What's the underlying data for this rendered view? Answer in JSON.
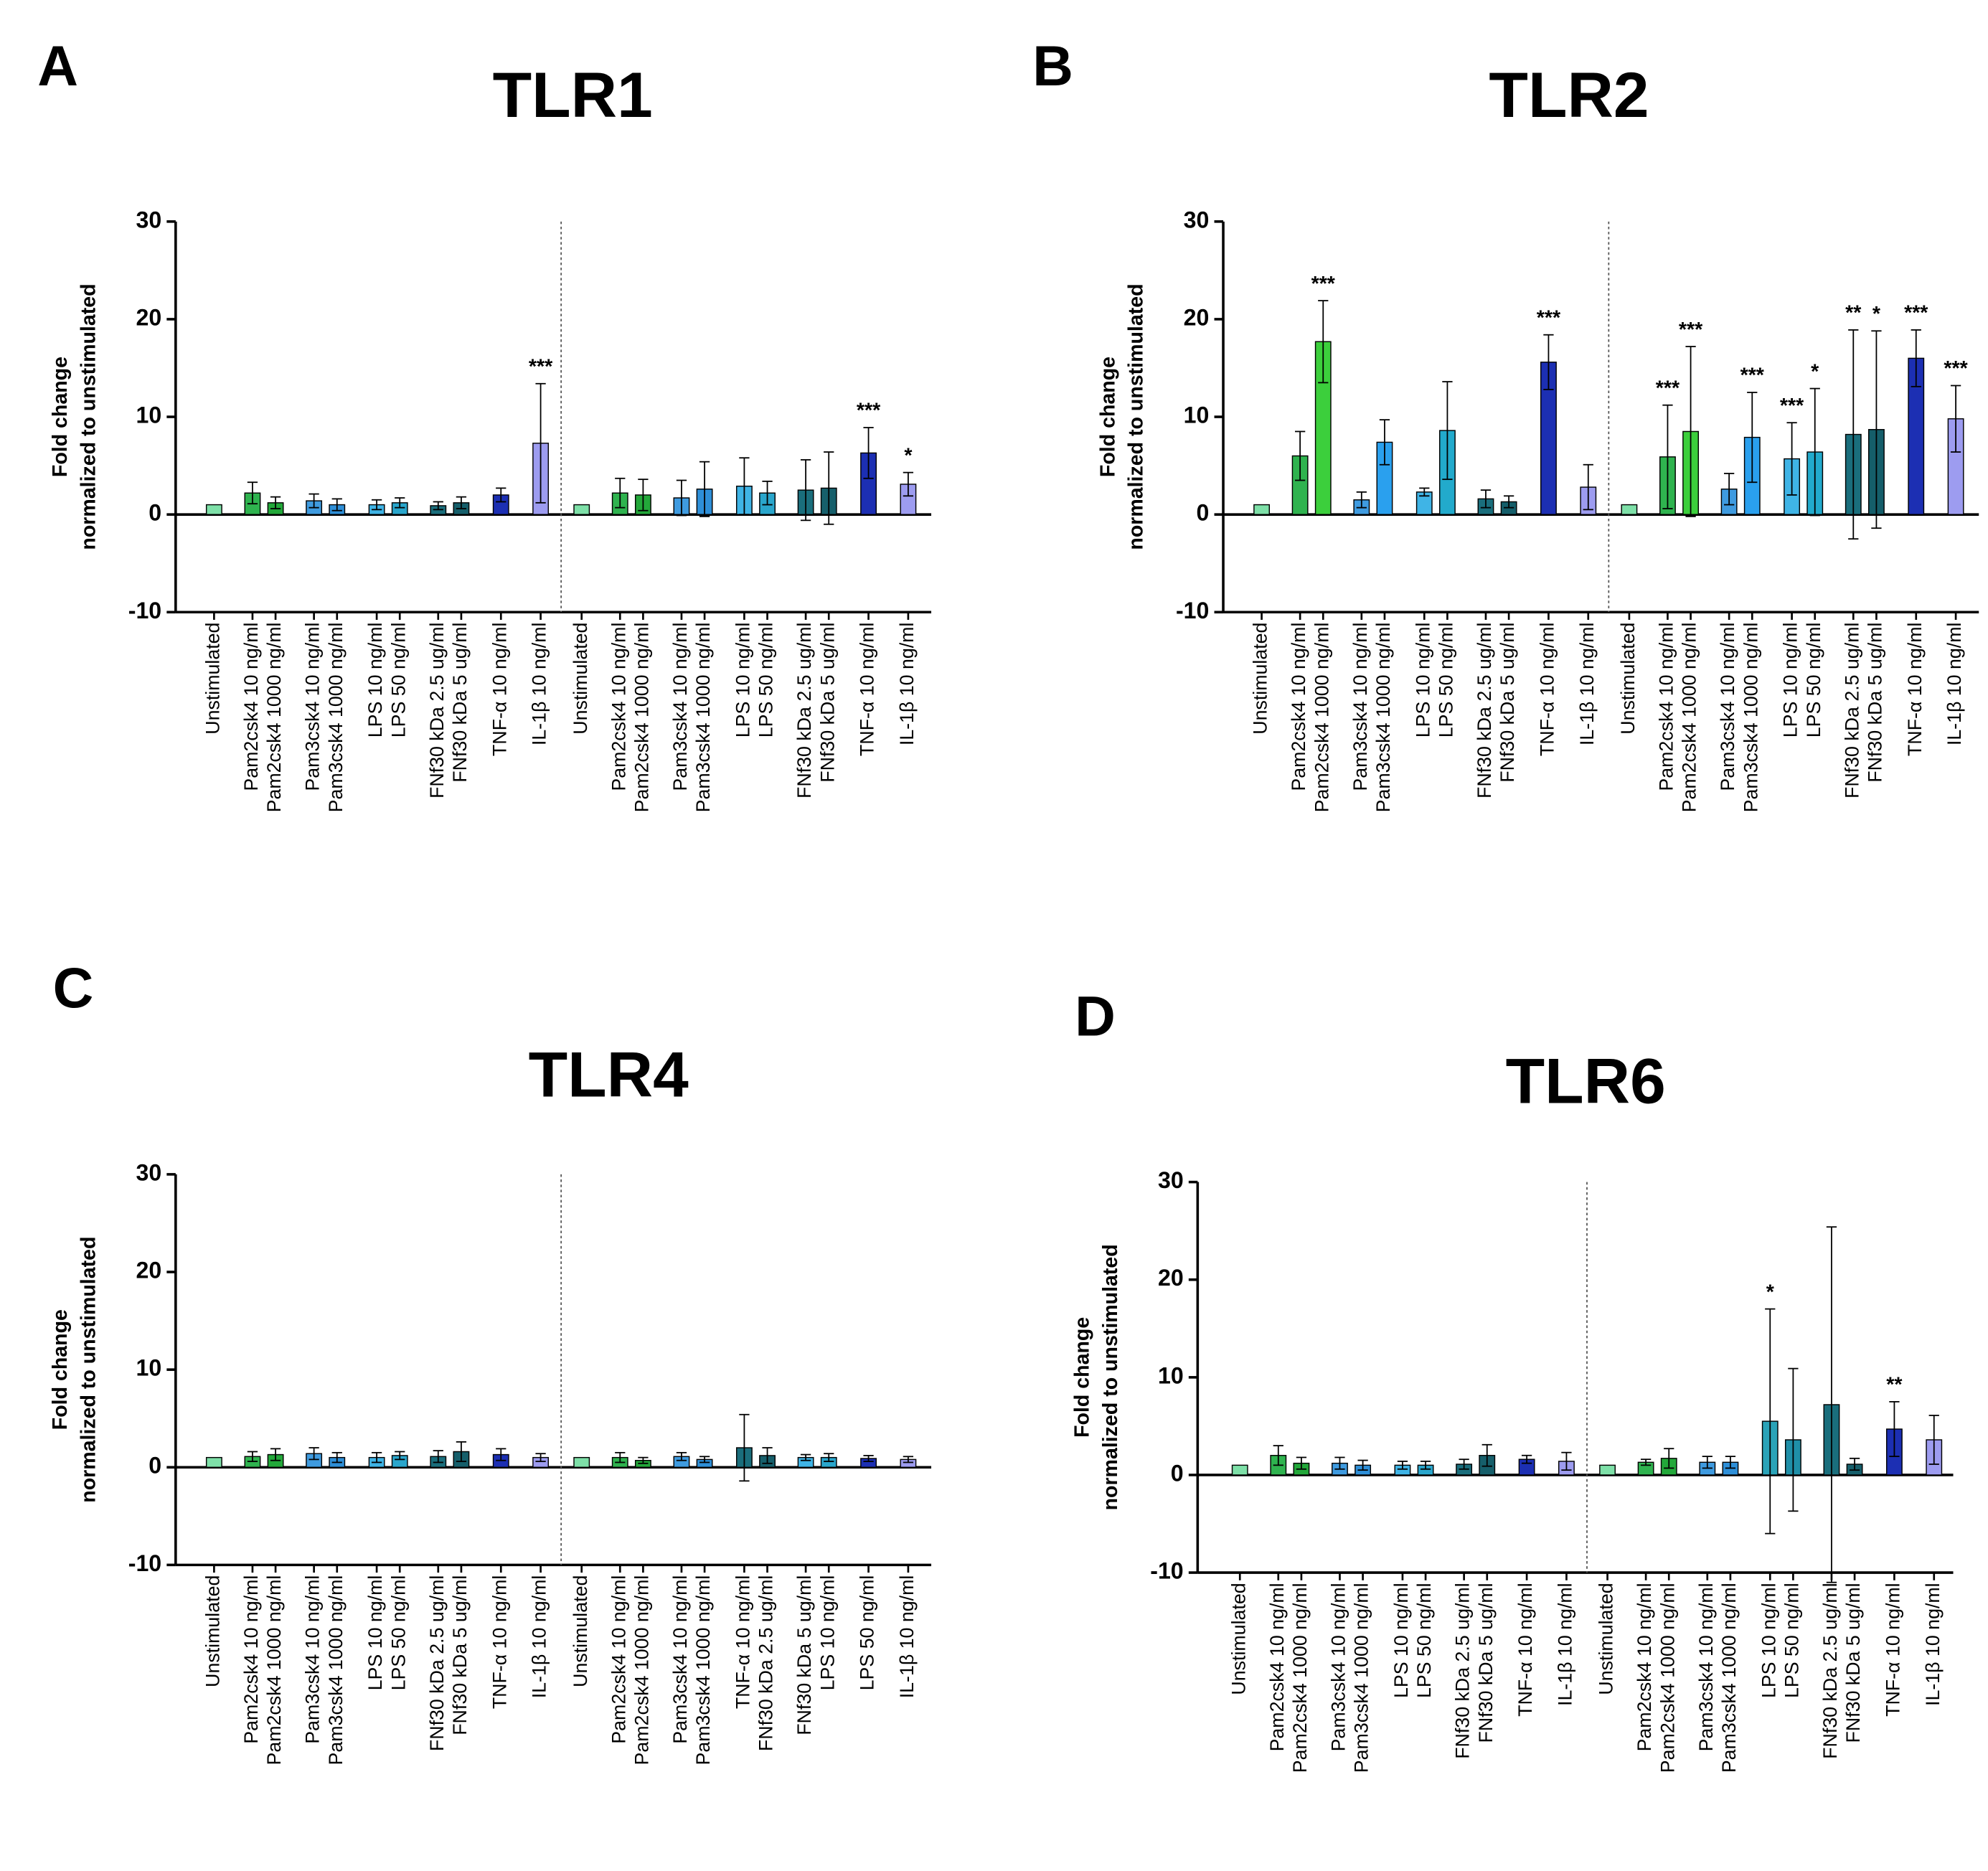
{
  "chart_data": [
    {
      "type": "bar",
      "panel": "A",
      "title": "TLR1",
      "ylabel": [
        "Fold change",
        "normalized to unstimulated"
      ],
      "categories": [
        "Unstimulated",
        "Pam2csk4 10 ng/ml",
        "Pam2csk4 1000 ng/ml",
        "Pam3csk4 10 ng/ml",
        "Pam3csk4 1000 ng/ml",
        "LPS 10 ng/ml",
        "LPS 50 ng/ml",
        "FNf30 kDa 2.5 ug/ml",
        "FNf30 kDa 5 ug/ml",
        "TNF-α 10 ng/ml",
        "IL-1β 10 ng/ml",
        "Unstimulated",
        "Pam2csk4 10 ng/ml",
        "Pam2csk4 1000 ng/ml",
        "Pam3csk4 10 ng/ml",
        "Pam3csk4 1000 ng/ml",
        "LPS 10 ng/ml",
        "LPS 50 ng/ml",
        "FNf30 kDa 2.5 ug/ml",
        "FNf30 kDa 5 ug/ml",
        "TNF-α 10 ng/ml",
        "IL-1β 10 ng/ml"
      ],
      "values": [
        1,
        2.2,
        1.2,
        1.4,
        1.0,
        1.0,
        1.2,
        0.9,
        1.2,
        2.0,
        7.3,
        1,
        2.2,
        2.0,
        1.7,
        2.6,
        2.9,
        2.2,
        2.5,
        2.7,
        6.3,
        3.1
      ],
      "errors": [
        0,
        1.1,
        0.6,
        0.7,
        0.6,
        0.5,
        0.5,
        0.4,
        0.6,
        0.7,
        6.1,
        0,
        1.5,
        1.6,
        1.8,
        2.8,
        2.9,
        1.2,
        3.1,
        3.7,
        2.6,
        1.2
      ],
      "colors": [
        "#7ee0a8",
        "#2fb34f",
        "#23a83a",
        "#3f9be0",
        "#2e8fd8",
        "#3fb4e6",
        "#2aa6cc",
        "#1a6e7c",
        "#165f6b",
        "#1c2fb3",
        "#9d9cf0",
        "#7ee0a8",
        "#2fb34f",
        "#23a83a",
        "#3f9be0",
        "#2e8fd8",
        "#3fb4e6",
        "#2aa6cc",
        "#1a6e7c",
        "#165f6b",
        "#1c2fb3",
        "#9d9cf0"
      ],
      "significance": [
        null,
        null,
        null,
        null,
        null,
        null,
        null,
        null,
        null,
        null,
        "***",
        null,
        null,
        null,
        null,
        null,
        null,
        null,
        null,
        null,
        "***",
        "*"
      ],
      "ylim": [
        -10,
        30
      ],
      "yticks": [
        -10,
        0,
        10,
        20,
        30
      ]
    },
    {
      "type": "bar",
      "panel": "B",
      "title": "TLR2",
      "ylabel": [
        "Fold change",
        "normalized to unstimulated"
      ],
      "categories": [
        "Unstimulated",
        "Pam2csk4 10 ng/ml",
        "Pam2csk4 1000 ng/ml",
        "Pam3csk4 10 ng/ml",
        "Pam3csk4 1000 ng/ml",
        "LPS 10 ng/ml",
        "LPS 50 ng/ml",
        "FNf30 kDa 2.5 ug/ml",
        "FNf30 kDa 5 ug/ml",
        "TNF-α 10 ng/ml",
        "IL-1β 10 ng/ml",
        "Unstimulated",
        "Pam2csk4 10 ng/ml",
        "Pam2csk4 1000 ng/ml",
        "Pam3csk4 10 ng/ml",
        "Pam3csk4 1000 ng/ml",
        "LPS 10 ng/ml",
        "LPS 50 ng/ml",
        "FNf30 kDa 2.5 ug/ml",
        "FNf30 kDa 5 ug/ml",
        "TNF-α 10 ng/ml",
        "IL-1β 10 ng/ml"
      ],
      "values": [
        1,
        6.0,
        17.7,
        1.5,
        7.4,
        2.3,
        8.6,
        1.6,
        1.3,
        15.6,
        2.8,
        1,
        5.9,
        8.5,
        2.6,
        7.9,
        5.7,
        6.4,
        8.2,
        8.7,
        16.0,
        9.8
      ],
      "errors": [
        0,
        2.5,
        4.2,
        0.8,
        2.3,
        0.4,
        5.0,
        0.9,
        0.6,
        2.8,
        2.3,
        0,
        5.3,
        8.7,
        1.6,
        4.6,
        3.7,
        6.5,
        10.7,
        10.1,
        2.9,
        3.4
      ],
      "colors": [
        "#7ee0a8",
        "#2fb34f",
        "#3ccf3c",
        "#3f9be0",
        "#2aa0ee",
        "#3fb4e6",
        "#22aacc",
        "#1a6e7c",
        "#155e6a",
        "#1c2fb3",
        "#9d9cf0",
        "#7ee0a8",
        "#2fb34f",
        "#3ccf3c",
        "#3f9be0",
        "#2aa0ee",
        "#3fb4e6",
        "#22aacc",
        "#1a6e7c",
        "#155e6a",
        "#1c2fb3",
        "#9d9cf0"
      ],
      "significance": [
        null,
        null,
        "***",
        null,
        null,
        null,
        null,
        null,
        null,
        "***",
        null,
        null,
        "***",
        "***",
        null,
        "***",
        "***",
        "*",
        "**",
        "*",
        "***",
        "***"
      ],
      "ylim": [
        -10,
        30
      ],
      "yticks": [
        -10,
        0,
        10,
        20,
        30
      ]
    },
    {
      "type": "bar",
      "panel": "C",
      "title": "TLR4",
      "ylabel": [
        "Fold change",
        "normalized to unstimulated"
      ],
      "categories": [
        "Unstimulated",
        "Pam2csk4 10 ng/ml",
        "Pam2csk4 1000 ng/ml",
        "Pam3csk4 10 ng/ml",
        "Pam3csk4 1000 ng/ml",
        "LPS 10 ng/ml",
        "LPS 50 ng/ml",
        "FNf30 kDa 2.5 ug/ml",
        "FNf30 kDa 5 ug/ml",
        "TNF-α 10 ng/ml",
        "IL-1β 10 ng/ml",
        "Unstimulated",
        "Pam2csk4 10 ng/ml",
        "Pam2csk4 1000 ng/ml",
        "Pam3csk4 10 ng/ml",
        "Pam3csk4 1000 ng/ml",
        "TNF-α 10 ng/ml",
        "FNf30 kDa 2.5 ug/ml",
        "FNf30 kDa 5 ug/ml",
        "LPS 10 ng/ml",
        "LPS 50 ng/ml",
        "IL-1β 10 ng/ml"
      ],
      "values": [
        1,
        1.1,
        1.3,
        1.4,
        1.0,
        1.0,
        1.2,
        1.1,
        1.6,
        1.3,
        1.0,
        1,
        1.0,
        0.7,
        1.1,
        0.8,
        2.0,
        1.2,
        1.0,
        1.0,
        0.9,
        0.8
      ],
      "errors": [
        0,
        0.5,
        0.6,
        0.6,
        0.5,
        0.5,
        0.4,
        0.6,
        1.0,
        0.6,
        0.4,
        0,
        0.5,
        0.3,
        0.4,
        0.3,
        3.4,
        0.8,
        0.3,
        0.4,
        0.3,
        0.3
      ],
      "colors": [
        "#7ee0a8",
        "#2fb34f",
        "#23a83a",
        "#3f9be0",
        "#2e8fd8",
        "#3fb4e6",
        "#2aa6cc",
        "#1a6e7c",
        "#165f6b",
        "#1c2fb3",
        "#9d9cf0",
        "#7ee0a8",
        "#2fb34f",
        "#23a83a",
        "#3f9be0",
        "#2e8fd8",
        "#1a6e7c",
        "#165f6b",
        "#3fb4e6",
        "#2aa6cc",
        "#1c2fb3",
        "#9d9cf0"
      ],
      "ylim": [
        -10,
        30
      ],
      "yticks": [
        -10,
        0,
        10,
        20,
        30
      ]
    },
    {
      "type": "bar",
      "panel": "D",
      "title": "TLR6",
      "ylabel": [
        "Fold change",
        "normalized to unstimulated"
      ],
      "categories": [
        "Unstimulated",
        "Pam2csk4 10 ng/ml",
        "Pam2csk4 1000 ng/ml",
        "Pam3csk4 10 ng/ml",
        "Pam3csk4 1000 ng/ml",
        "LPS 10 ng/ml",
        "LPS 50 ng/ml",
        "FNf30 kDa 2.5 ug/ml",
        "FNf30 kDa 5 ug/ml",
        "TNF-α 10 ng/ml",
        "IL-1β 10 ng/ml",
        "Unstimulated",
        "Pam2csk4 10 ng/ml",
        "Pam2csk4 1000 ng/ml",
        "Pam3csk4 10 ng/ml",
        "Pam3csk4 1000 ng/ml",
        "LPS 10 ng/ml",
        "LPS 50 ng/ml",
        "FNf30 kDa 2.5 ug/ml",
        "FNf30 kDa 5 ug/ml",
        "TNF-α 10 ng/ml",
        "IL-1β 10 ng/ml"
      ],
      "values": [
        1,
        2.0,
        1.2,
        1.2,
        1.0,
        1.0,
        1.0,
        1.1,
        2.0,
        1.6,
        1.4,
        1,
        1.3,
        1.7,
        1.3,
        1.3,
        5.5,
        3.6,
        7.2,
        1.1,
        4.7,
        3.6
      ],
      "errors": [
        0,
        1.0,
        0.6,
        0.6,
        0.5,
        0.4,
        0.4,
        0.5,
        1.1,
        0.4,
        0.9,
        0,
        0.3,
        1.0,
        0.6,
        0.6,
        11.5,
        7.3,
        18.2,
        0.6,
        2.8,
        2.5
      ],
      "colors": [
        "#7ee0a8",
        "#2fb34f",
        "#23a83a",
        "#3f9be0",
        "#2e8fd8",
        "#3fb4e6",
        "#2aa6cc",
        "#1a6e7c",
        "#165f6b",
        "#1c2fb3",
        "#9d9cf0",
        "#7ee0a8",
        "#2fb34f",
        "#23a83a",
        "#3f9be0",
        "#2e8fd8",
        "#2aa3b8",
        "#1f8fa8",
        "#1a6e7c",
        "#165f6b",
        "#1c2fb3",
        "#9d9cf0"
      ],
      "significance": [
        null,
        null,
        null,
        null,
        null,
        null,
        null,
        null,
        null,
        null,
        null,
        null,
        null,
        null,
        null,
        null,
        "*",
        null,
        null,
        null,
        "**",
        null
      ],
      "ylim": [
        -10,
        30
      ],
      "yticks": [
        -10,
        0,
        10,
        20,
        30
      ]
    }
  ]
}
